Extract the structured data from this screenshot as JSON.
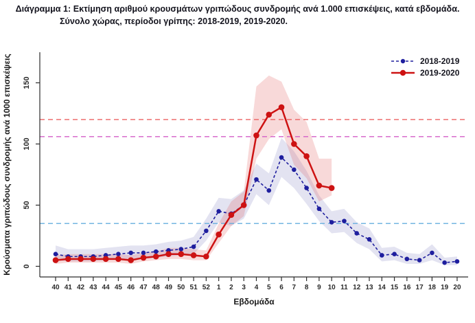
{
  "chart_data": {
    "type": "line",
    "title_line1": "Διάγραμμα 1: Εκτίμηση αριθμού κρουσμάτων γριπώδους συνδρομής ανά 1.000 επισκέψεις, κατά εβδομάδα.",
    "title_line2": "Σύνολο χώρας, περίοδοι γρίπης:  2018-2019, 2019-2020.",
    "xlabel": "Εβδομάδα",
    "ylabel": "Κρούσματα γριπώδους συνδρομής ανά 1000 επισκέψεις",
    "x_tick_labels": [
      "40",
      "41",
      "42",
      "43",
      "44",
      "45",
      "46",
      "47",
      "48",
      "49",
      "50",
      "51",
      "52",
      "1",
      "2",
      "3",
      "4",
      "5",
      "6",
      "7",
      "8",
      "9",
      "10",
      "11",
      "12",
      "13",
      "14",
      "15",
      "16",
      "17",
      "18",
      "19",
      "20"
    ],
    "y_ticks": [
      0,
      50,
      100,
      150
    ],
    "ylim": [
      0,
      175
    ],
    "grid": false,
    "legend_position": "top-right",
    "axis_color": "#2b2b2b",
    "text_color": "#2a2a2a",
    "series": [
      {
        "name": "2018-2019",
        "line_style": "dashed",
        "color": "#1e1e9e",
        "band_color": "rgba(115,115,185,0.20)",
        "values": [
          10,
          8,
          8,
          8,
          9,
          10,
          11,
          11,
          12,
          13,
          14,
          16,
          29,
          45,
          43,
          50,
          71,
          62,
          89,
          79,
          64,
          47,
          36,
          37,
          27,
          22,
          9,
          10,
          6,
          5,
          11,
          3,
          4
        ],
        "band_lower": [
          5,
          4,
          4,
          4,
          5,
          6,
          6,
          6,
          7,
          8,
          9,
          10,
          21,
          36,
          33,
          39,
          59,
          50,
          73,
          64,
          51,
          37,
          27,
          28,
          19,
          14,
          4,
          5,
          2,
          2,
          5,
          1,
          1
        ],
        "band_upper": [
          17,
          14,
          14,
          14,
          15,
          16,
          17,
          17,
          18,
          20,
          21,
          24,
          39,
          56,
          55,
          62,
          84,
          76,
          105,
          94,
          78,
          58,
          45,
          47,
          36,
          31,
          15,
          16,
          11,
          10,
          18,
          7,
          8
        ]
      },
      {
        "name": "2019-2020",
        "line_style": "solid",
        "color": "#cd1212",
        "band_color": "rgba(222,80,80,0.22)",
        "values": [
          5,
          6,
          6,
          6,
          6,
          6,
          5,
          7,
          8,
          10,
          10,
          9,
          8,
          26,
          42,
          50,
          107,
          124,
          130,
          100,
          90,
          66,
          64
        ],
        "band_lower": [
          2,
          3,
          3,
          3,
          3,
          3,
          2,
          4,
          5,
          6,
          6,
          5,
          5,
          19,
          33,
          41,
          88,
          104,
          112,
          83,
          72,
          53,
          58
        ],
        "band_upper": [
          9,
          10,
          10,
          10,
          10,
          10,
          9,
          11,
          12,
          15,
          15,
          14,
          13,
          35,
          53,
          61,
          147,
          156,
          151,
          128,
          118,
          88,
          88
        ]
      }
    ],
    "threshold_lines": [
      {
        "name": "high-intensity-threshold",
        "value": 120,
        "color": "#ec6060"
      },
      {
        "name": "medium-intensity-threshold",
        "value": 106,
        "color": "#d45cc8"
      },
      {
        "name": "baseline-threshold",
        "value": 35,
        "color": "#66aede"
      }
    ]
  }
}
